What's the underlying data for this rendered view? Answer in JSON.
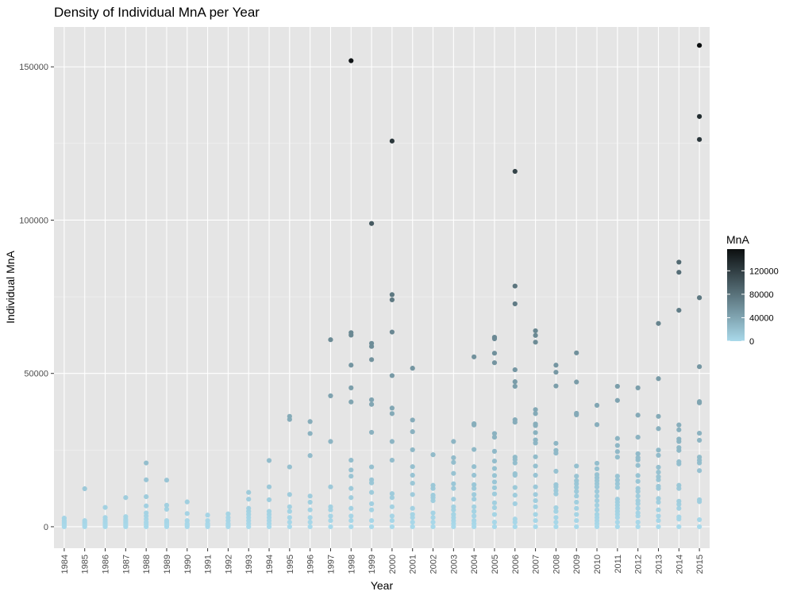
{
  "chart_data": {
    "type": "scatter",
    "title": "Density of Individual MnA per Year",
    "xlabel": "Year",
    "ylabel": "Individual MnA",
    "ylim": [
      -7000,
      163000
    ],
    "y_ticks": [
      0,
      50000,
      100000,
      150000
    ],
    "categories": [
      "1984",
      "1985",
      "1986",
      "1987",
      "1988",
      "1989",
      "1990",
      "1991",
      "1992",
      "1993",
      "1994",
      "1995",
      "1996",
      "1997",
      "1998",
      "1999",
      "2000",
      "2001",
      "2002",
      "2003",
      "2004",
      "2005",
      "2006",
      "2007",
      "2008",
      "2009",
      "2010",
      "2011",
      "2012",
      "2013",
      "2014",
      "2015"
    ],
    "grid": true,
    "background": "#e5e5e5",
    "color_low": "#a9d9ea",
    "color_high": "#0c0f10",
    "legend": {
      "title": "MnA",
      "position": "right",
      "ticks": [
        0,
        40000,
        80000,
        120000
      ],
      "min": 0,
      "max": 157000
    },
    "points": {
      "1984": [
        0,
        500,
        1000,
        1500,
        2000,
        2800
      ],
      "1985": [
        0,
        500,
        1000,
        1500,
        2000,
        12400
      ],
      "1986": [
        0,
        500,
        1000,
        1500,
        2200,
        3000,
        6300
      ],
      "1987": [
        0,
        500,
        1000,
        1500,
        2000,
        2500,
        3300,
        9500
      ],
      "1988": [
        0,
        800,
        1500,
        2500,
        3500,
        4500,
        6800,
        9800,
        15300,
        20800
      ],
      "1989": [
        0,
        500,
        1000,
        1500,
        2000,
        5700,
        7000,
        15200
      ],
      "1990": [
        0,
        500,
        1000,
        2000,
        4300,
        8100
      ],
      "1991": [
        0,
        500,
        1000,
        2000,
        3800
      ],
      "1992": [
        0,
        500,
        1000,
        2000,
        3000,
        4200
      ],
      "1993": [
        0,
        1000,
        2000,
        3000,
        4000,
        5000,
        6000,
        9000,
        11200
      ],
      "1994": [
        0,
        1000,
        2000,
        3000,
        4000,
        5000,
        8800,
        13000,
        21600
      ],
      "1995": [
        0,
        1500,
        3000,
        5000,
        6500,
        10500,
        19500,
        35000,
        36000
      ],
      "1996": [
        0,
        1500,
        3000,
        5500,
        8000,
        10000,
        23200,
        30400,
        34300
      ],
      "1997": [
        0,
        2000,
        3500,
        5500,
        6500,
        13000,
        27800,
        42700,
        61000
      ],
      "1998": [
        0,
        2000,
        3500,
        6000,
        9500,
        12500,
        16500,
        18500,
        21700,
        40700,
        45300,
        52700,
        62500,
        63300,
        152000
      ],
      "1999": [
        0,
        2000,
        5500,
        7500,
        11200,
        14300,
        15300,
        19500,
        30800,
        39900,
        41400,
        54500,
        58800,
        59800,
        98900
      ],
      "2000": [
        0,
        2000,
        3500,
        6500,
        9500,
        10800,
        21700,
        27800,
        36900,
        38700,
        49300,
        63500,
        74000,
        75700,
        125800
      ],
      "2001": [
        0,
        1500,
        3000,
        4000,
        6000,
        10500,
        14200,
        16800,
        19600,
        25100,
        31000,
        34800,
        51700
      ],
      "2002": [
        0,
        1500,
        3000,
        4500,
        8500,
        9500,
        10300,
        12500,
        13500,
        23500
      ],
      "2003": [
        0,
        1000,
        2000,
        3000,
        4000,
        5500,
        6500,
        9000,
        12500,
        14000,
        17400,
        21000,
        22500,
        27800
      ],
      "2004": [
        0,
        1000,
        2000,
        3500,
        5000,
        6500,
        9000,
        10500,
        12500,
        13700,
        16800,
        19600,
        25200,
        33200,
        33600,
        55400
      ],
      "2005": [
        0,
        1500,
        4000,
        6200,
        7800,
        10700,
        12700,
        14600,
        16700,
        19000,
        21400,
        24600,
        29200,
        30400,
        53500,
        56600,
        61300,
        61800
      ],
      "2006": [
        0,
        1500,
        2500,
        7500,
        10300,
        12800,
        16800,
        17300,
        20800,
        21900,
        22700,
        34100,
        34900,
        45800,
        47300,
        51200,
        72700,
        78500,
        115900
      ],
      "2007": [
        0,
        2000,
        4000,
        6500,
        8500,
        10500,
        13000,
        16800,
        19800,
        22800,
        27300,
        28300,
        30700,
        33000,
        33500,
        36900,
        38200,
        60200,
        62400,
        63900
      ],
      "2008": [
        0,
        1500,
        3000,
        5000,
        6200,
        10700,
        11800,
        13000,
        13700,
        18100,
        24000,
        24900,
        27200,
        45900,
        50400,
        52700
      ],
      "2009": [
        0,
        2000,
        4000,
        6000,
        8000,
        10000,
        11500,
        12800,
        14000,
        15000,
        16500,
        19800,
        36500,
        37000,
        47200,
        56700
      ],
      "2010": [
        0,
        1000,
        2000,
        3000,
        4000,
        5500,
        7000,
        8500,
        10000,
        11500,
        13000,
        14000,
        15000,
        16000,
        17000,
        18900,
        20700,
        33300,
        39600
      ],
      "2011": [
        0,
        1500,
        3000,
        4000,
        5000,
        6000,
        7000,
        8000,
        9000,
        12800,
        14000,
        15200,
        16500,
        22700,
        24500,
        26500,
        28800,
        41200,
        45800
      ],
      "2012": [
        0,
        1500,
        3500,
        4500,
        6000,
        7500,
        8500,
        10000,
        11500,
        12500,
        14800,
        16700,
        20000,
        21800,
        22500,
        23800,
        29200,
        36400,
        45300
      ],
      "2013": [
        0,
        2000,
        3500,
        5500,
        8000,
        9200,
        12500,
        13200,
        15300,
        16300,
        17800,
        19400,
        23300,
        25000,
        32000,
        36000,
        48300,
        66300
      ],
      "2014": [
        0,
        2500,
        3200,
        6000,
        7300,
        8300,
        12500,
        13500,
        20500,
        21200,
        24900,
        25800,
        27800,
        28600,
        31600,
        33200,
        70600,
        83000,
        86300
      ],
      "2015": [
        0,
        2300,
        8200,
        8800,
        18300,
        20800,
        21700,
        22700,
        28200,
        30500,
        40400,
        40800,
        52200,
        74700,
        126300,
        133800,
        157000
      ]
    }
  }
}
